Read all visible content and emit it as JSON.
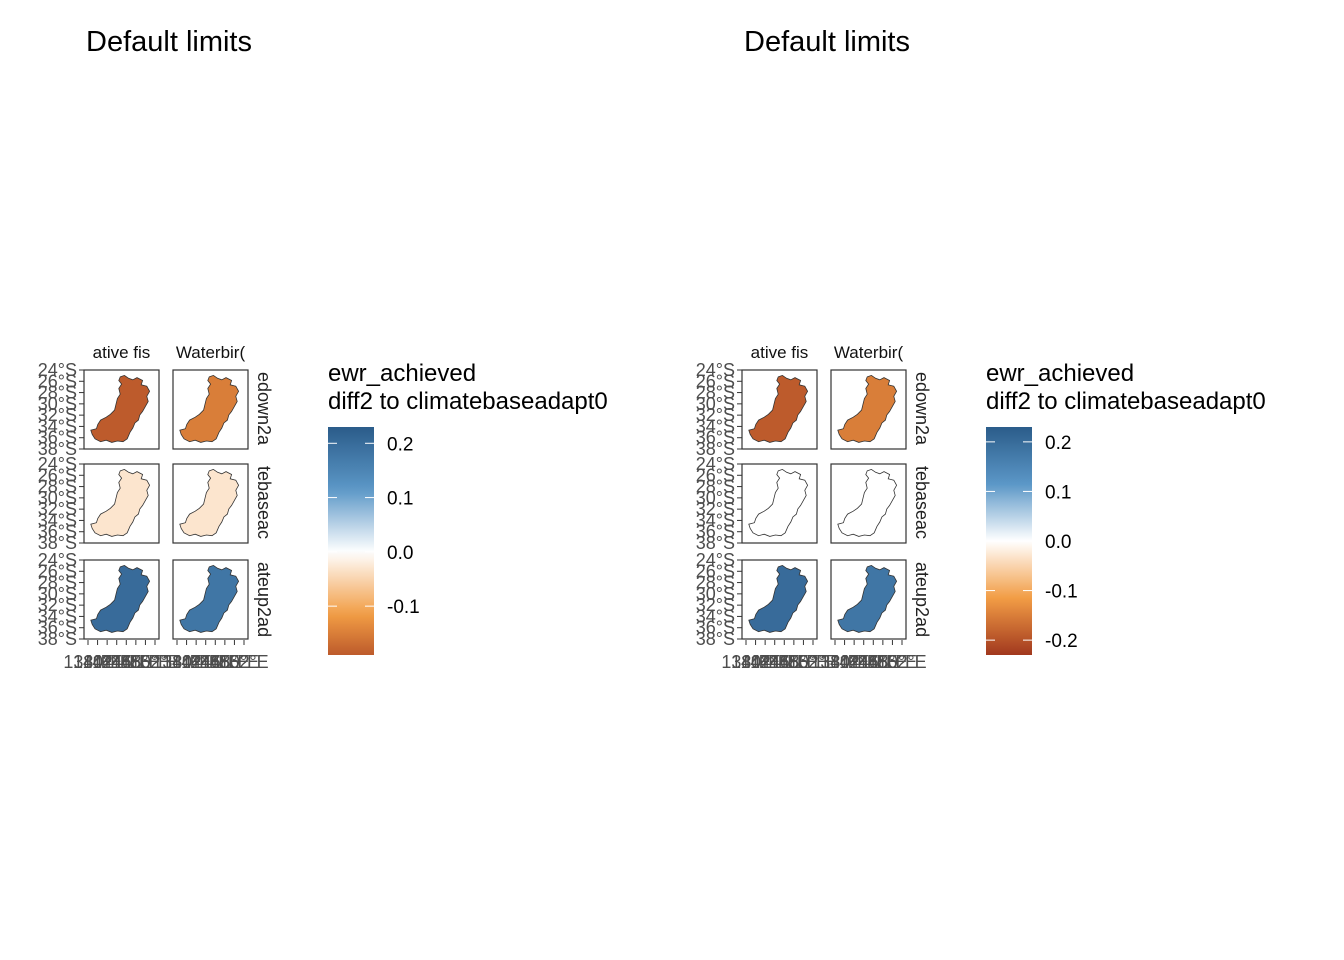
{
  "chart_data": [
    {
      "type": "heatmap",
      "title": "Default limits",
      "facet_columns": [
        "ative fis",
        "Waterbir("
      ],
      "facet_rows": [
        "edown2a",
        "tebaseac",
        "ateup2ad"
      ],
      "y_tick_labels": [
        "24°S",
        "26°S",
        "28°S",
        "30°S",
        "32°S",
        "34°S",
        "36°S",
        "38°S"
      ],
      "x_tick_labels": [
        "138°E",
        "140°E",
        "142°E",
        "144°E",
        "146°E",
        "148°E",
        "150°E",
        "152°E"
      ],
      "fill_values": [
        [
          -0.19,
          -0.15
        ],
        [
          -0.03,
          -0.03
        ],
        [
          0.2,
          0.18
        ]
      ],
      "legend": {
        "title_line1": "ewr_achieved",
        "title_line2": "diff2 to climatebaseadapt0",
        "limits": [
          -0.19,
          0.23
        ],
        "breaks": [
          0.2,
          0.1,
          0.0,
          -0.1
        ],
        "break_labels": [
          "0.2",
          "0.1",
          "0.0",
          "-0.1"
        ],
        "position": "right"
      },
      "colors": {
        "low": "#A1381E",
        "mid_low": "#F29D45",
        "mid": "#FFFFFF",
        "mid_high": "#5B97C7",
        "high": "#2B5C8A"
      }
    },
    {
      "type": "heatmap",
      "title": "Default limits",
      "facet_columns": [
        "ative fis",
        "Waterbir("
      ],
      "facet_rows": [
        "edown2a",
        "tebaseac",
        "ateup2ad"
      ],
      "y_tick_labels": [
        "24°S",
        "26°S",
        "28°S",
        "30°S",
        "32°S",
        "34°S",
        "36°S",
        "38°S"
      ],
      "x_tick_labels": [
        "138°E",
        "140°E",
        "142°E",
        "144°E",
        "146°E",
        "148°E",
        "150°E",
        "152°E"
      ],
      "fill_values": [
        [
          -0.19,
          -0.15
        ],
        [
          0.0,
          0.0
        ],
        [
          0.2,
          0.18
        ]
      ],
      "legend": {
        "title_line1": "ewr_achieved",
        "title_line2": "diff2 to climatebaseadapt0",
        "limits": [
          -0.23,
          0.23
        ],
        "breaks": [
          0.2,
          0.1,
          0.0,
          -0.1,
          -0.2
        ],
        "break_labels": [
          "0.2",
          "0.1",
          "0.0",
          "-0.1",
          "-0.2"
        ],
        "position": "right"
      },
      "colors": {
        "low": "#A1381E",
        "mid_low": "#F29D45",
        "mid": "#FFFFFF",
        "mid_high": "#5B97C7",
        "high": "#2B5C8A"
      }
    }
  ]
}
